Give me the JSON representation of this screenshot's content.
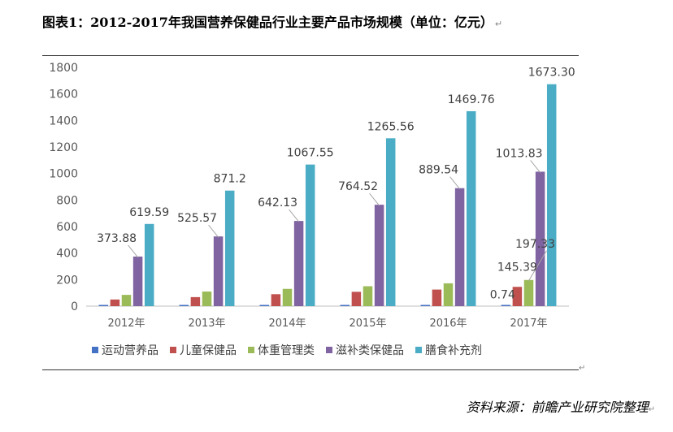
{
  "title": "图表1：2012-2017年我国营养保健品行业主要产品市场规模（单位：亿元）",
  "source": "资料来源：前瞻产业研究院整理",
  "chart_data": {
    "type": "bar",
    "title": "图表1：2012-2017年我国营养保健品行业主要产品市场规模（单位：亿元）",
    "xlabel": "",
    "ylabel": "",
    "ylim": [
      0,
      1800
    ],
    "yticks": [
      0,
      200,
      400,
      600,
      800,
      1000,
      1200,
      1400,
      1600,
      1800
    ],
    "categories": [
      "2012年",
      "2013年",
      "2014年",
      "2015年",
      "2016年",
      "2017年"
    ],
    "grid": false,
    "legend": "bottom",
    "series": [
      {
        "name": "运动营养品",
        "color": "#4472C4",
        "values": [
          0.5,
          0.55,
          0.6,
          0.65,
          0.7,
          0.74
        ],
        "labels": [
          "",
          "",
          "",
          "",
          "",
          "0.74"
        ]
      },
      {
        "name": "儿童保健品",
        "color": "#C0504D",
        "values": [
          50,
          68,
          90,
          108,
          125,
          145.39
        ],
        "labels": [
          "",
          "",
          "",
          "",
          "",
          "145.39"
        ]
      },
      {
        "name": "体重管理类",
        "color": "#9BBB59",
        "values": [
          85,
          110,
          130,
          150,
          172,
          197.33
        ],
        "labels": [
          "",
          "",
          "",
          "",
          "",
          "197.33"
        ]
      },
      {
        "name": "滋补类保健品",
        "color": "#8064A2",
        "values": [
          373.88,
          525.57,
          642.13,
          764.52,
          889.54,
          1013.83
        ],
        "labels": [
          "373.88",
          "525.57",
          "642.13",
          "764.52",
          "889.54",
          "1013.83"
        ]
      },
      {
        "name": "膳食补充剂",
        "color": "#4BACC6",
        "values": [
          619.59,
          871.2,
          1067.55,
          1265.56,
          1469.76,
          1673.3
        ],
        "labels": [
          "619.59",
          "871.2",
          "1067.55",
          "1265.56",
          "1469.76",
          "1673.30"
        ]
      }
    ]
  }
}
